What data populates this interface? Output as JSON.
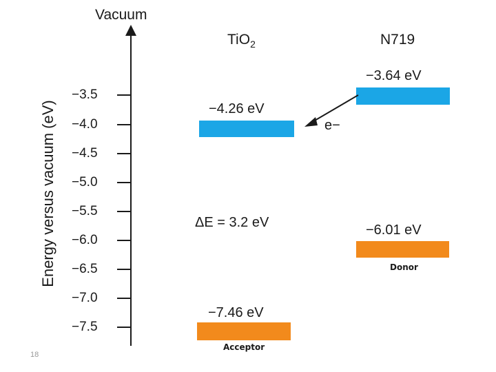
{
  "axis": {
    "top_label": "Vacuum",
    "y_label": "Energy versus vacuum (eV)",
    "ticks": [
      "−3.5",
      "−4.0",
      "−4.5",
      "−5.0",
      "−5.5",
      "−6.0",
      "−6.5",
      "−7.0",
      "−7.5"
    ]
  },
  "columns": {
    "tio2": {
      "name": "TiO",
      "sub": "2"
    },
    "n719": {
      "name": "N719"
    }
  },
  "levels": {
    "tio2_cb": {
      "label": "−4.26 eV",
      "value": -4.26,
      "color": "#1ba6e6"
    },
    "tio2_vb": {
      "label": "−7.46 eV",
      "value": -7.46,
      "color": "#f28a1c"
    },
    "n719_lumo": {
      "label": "−3.64 eV",
      "value": -3.64,
      "color": "#1ba6e6"
    },
    "n719_homo": {
      "label": "−6.01 eV",
      "value": -6.01,
      "color": "#f28a1c"
    }
  },
  "annotations": {
    "gap": "ΔE = 3.2 eV",
    "electron": "e−",
    "acceptor": "Acceptor",
    "donor": "Donor"
  },
  "footer": {
    "page_number": "18"
  }
}
